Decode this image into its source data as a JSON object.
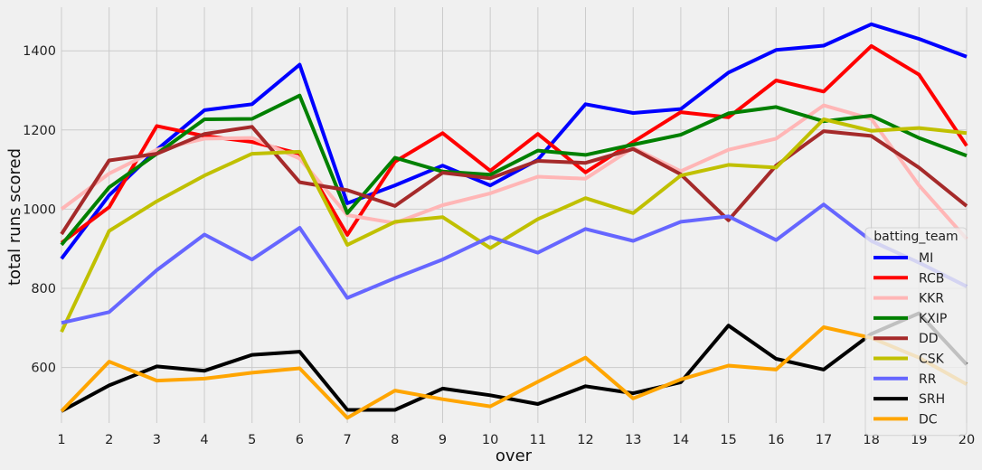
{
  "chart_data": {
    "type": "line",
    "title": "",
    "xlabel": "over",
    "ylabel": "total runs scored",
    "x": [
      1,
      2,
      3,
      4,
      5,
      6,
      7,
      8,
      9,
      10,
      11,
      12,
      13,
      14,
      15,
      16,
      17,
      18,
      19,
      20
    ],
    "xlim": [
      1,
      20
    ],
    "ylim": [
      460,
      1510
    ],
    "yticks": [
      600,
      800,
      1000,
      1200,
      1400
    ],
    "grid": true,
    "legend_title": "batting_team",
    "legend_position": "lower-right",
    "series": [
      {
        "name": "MI",
        "color": "#0000ff",
        "values": [
          875,
          1035,
          1150,
          1250,
          1265,
          1365,
          1015,
          1060,
          1110,
          1060,
          1125,
          1265,
          1243,
          1253,
          1345,
          1402,
          1413,
          1467,
          1430,
          1385
        ]
      },
      {
        "name": "RCB",
        "color": "#ff0000",
        "values": [
          915,
          1005,
          1210,
          1185,
          1170,
          1140,
          935,
          1120,
          1192,
          1097,
          1190,
          1093,
          1170,
          1245,
          1232,
          1325,
          1297,
          1412,
          1340,
          1160
        ]
      },
      {
        "name": "KKR",
        "color": "#ffb6b6",
        "values": [
          1000,
          1090,
          1150,
          1178,
          1180,
          1128,
          985,
          965,
          1010,
          1040,
          1082,
          1077,
          1155,
          1096,
          1150,
          1178,
          1262,
          1228,
          1060,
          925
        ]
      },
      {
        "name": "KXIP",
        "color": "#008000",
        "values": [
          910,
          1055,
          1140,
          1227,
          1228,
          1287,
          990,
          1130,
          1095,
          1087,
          1148,
          1137,
          1163,
          1188,
          1242,
          1258,
          1222,
          1236,
          1180,
          1135
        ]
      },
      {
        "name": "DD",
        "color": "#a52a2a",
        "values": [
          937,
          1123,
          1140,
          1190,
          1208,
          1068,
          1048,
          1008,
          1092,
          1078,
          1122,
          1117,
          1152,
          1088,
          972,
          1110,
          1197,
          1185,
          1105,
          1008
        ]
      },
      {
        "name": "CSK",
        "color": "#c0c000",
        "values": [
          690,
          945,
          1020,
          1085,
          1140,
          1145,
          910,
          968,
          980,
          902,
          975,
          1028,
          990,
          1085,
          1112,
          1105,
          1227,
          1198,
          1205,
          1192
        ]
      },
      {
        "name": "RR",
        "color": "#6666ff",
        "values": [
          713,
          740,
          846,
          936,
          873,
          953,
          776,
          826,
          873,
          930,
          890,
          950,
          920,
          968,
          982,
          922,
          1012,
          920,
          865,
          805
        ]
      },
      {
        "name": "SRH",
        "color": "#000000",
        "values": [
          490,
          555,
          603,
          592,
          632,
          640,
          493,
          493,
          547,
          530,
          508,
          553,
          535,
          563,
          706,
          622,
          595,
          685,
          737,
          608
        ]
      },
      {
        "name": "DC",
        "color": "#ffa500",
        "values": [
          490,
          615,
          567,
          572,
          587,
          598,
          473,
          542,
          520,
          502,
          564,
          625,
          522,
          570,
          605,
          595,
          702,
          675,
          625,
          558
        ]
      }
    ]
  }
}
